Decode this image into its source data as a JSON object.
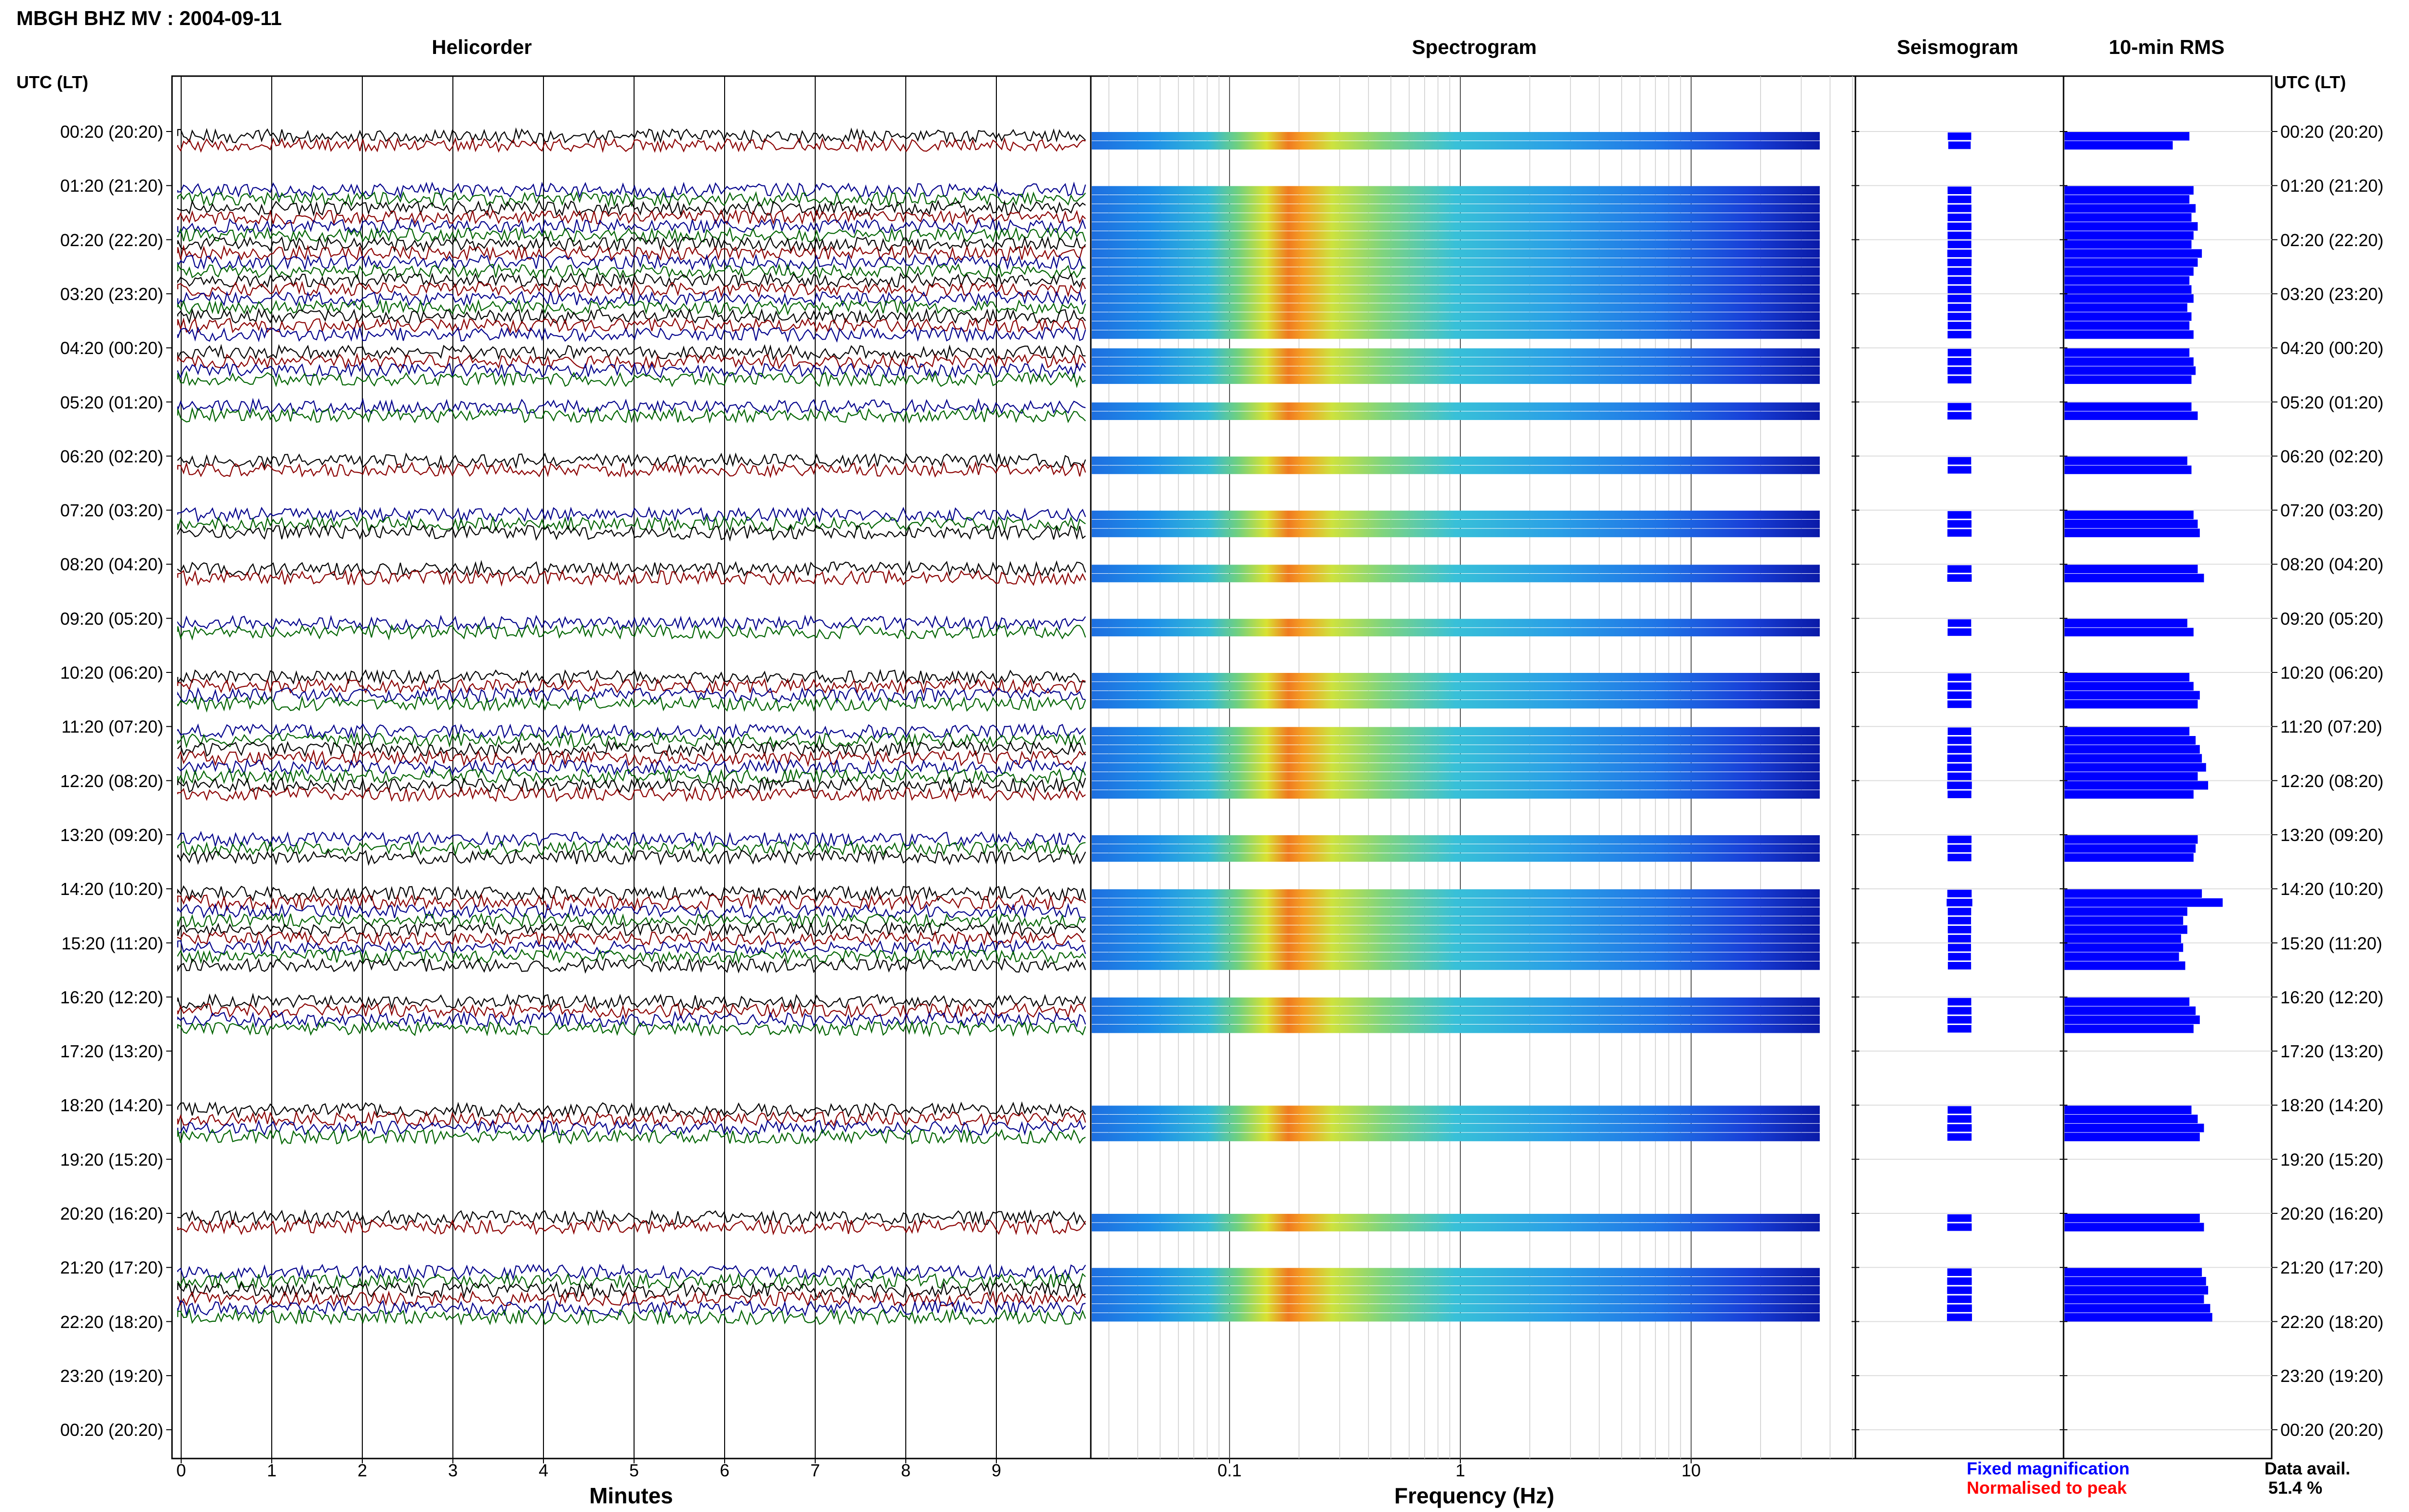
{
  "title": "MBGH BHZ MV : 2004-09-11",
  "panels": {
    "helicorder": "Helicorder",
    "spectrogram": "Spectrogram",
    "seismogram": "Seismogram",
    "rms": "10-min RMS"
  },
  "utc_header": "UTC (LT)",
  "hour_labels": [
    "00:20 (20:20)",
    "01:20 (21:20)",
    "02:20 (22:20)",
    "03:20 (23:20)",
    "04:20 (00:20)",
    "05:20 (01:20)",
    "06:20 (02:20)",
    "07:20 (03:20)",
    "08:20 (04:20)",
    "09:20 (05:20)",
    "10:20 (06:20)",
    "11:20 (07:20)",
    "12:20 (08:20)",
    "13:20 (09:20)",
    "14:20 (10:20)",
    "15:20 (11:20)",
    "16:20 (12:20)",
    "17:20 (13:20)",
    "18:20 (14:20)",
    "19:20 (15:20)",
    "20:20 (16:20)",
    "21:20 (17:20)",
    "22:20 (18:20)",
    "23:20 (19:20)",
    "00:20 (20:20)"
  ],
  "helicorder_x": {
    "title": "Minutes",
    "ticks": [
      "0",
      "1",
      "2",
      "3",
      "4",
      "5",
      "6",
      "7",
      "8",
      "9"
    ]
  },
  "spectrogram_x": {
    "title": "Frequency (Hz)",
    "ticks": [
      "0.1",
      "1",
      "10"
    ],
    "scale": "log"
  },
  "legend": {
    "fixed": "Fixed magnification",
    "normalised": "Normalised to peak",
    "fixed_color": "#0000ff",
    "normalised_color": "#ff0000"
  },
  "data_avail": {
    "label": "Data avail.",
    "value": "51.4 %"
  },
  "colors": {
    "trace_black": "#000000",
    "trace_red": "#8b0000",
    "trace_blue": "#00008b",
    "trace_green": "#006400",
    "rms_bar": "#0000ff",
    "seismo": "#0000ff"
  },
  "chart_data": {
    "type": "heatmap",
    "title": "MBGH BHZ MV : 2004-09-11",
    "rows_per_hour": 6,
    "hours": 24,
    "data_available_percent": 51.4,
    "rms_level": [
      0.6,
      0.52,
      null,
      null,
      null,
      null,
      0.62,
      0.6,
      0.63,
      0.61,
      0.64,
      0.62,
      0.61,
      0.66,
      0.64,
      0.62,
      0.6,
      0.61,
      0.62,
      0.59,
      0.61,
      0.6,
      0.62,
      null,
      0.6,
      0.62,
      0.63,
      0.61,
      null,
      null,
      0.61,
      0.64,
      null,
      null,
      null,
      null,
      0.59,
      0.61,
      null,
      null,
      null,
      null,
      0.62,
      0.64,
      0.65,
      null,
      null,
      null,
      0.64,
      0.67,
      null,
      null,
      null,
      null,
      0.59,
      0.62,
      null,
      null,
      null,
      null,
      0.6,
      0.62,
      0.65,
      0.64,
      null,
      null,
      0.6,
      0.63,
      0.65,
      0.66,
      0.68,
      0.64,
      0.69,
      0.62,
      null,
      null,
      null,
      null,
      0.64,
      0.63,
      0.62,
      null,
      null,
      null,
      0.66,
      0.76,
      0.59,
      0.57,
      0.59,
      0.56,
      0.57,
      0.55,
      0.58,
      null,
      null,
      null,
      0.6,
      0.63,
      0.65,
      0.62,
      null,
      null,
      null,
      null,
      null,
      null,
      null,
      null,
      0.61,
      0.64,
      0.67,
      0.65,
      null,
      null,
      null,
      null,
      null,
      null,
      null,
      null,
      0.65,
      0.67,
      null,
      null,
      null,
      null,
      0.66,
      0.68,
      0.69,
      0.67,
      0.7,
      0.71,
      null,
      null,
      null,
      null,
      null,
      null,
      null,
      null,
      null,
      null,
      null,
      null
    ]
  }
}
